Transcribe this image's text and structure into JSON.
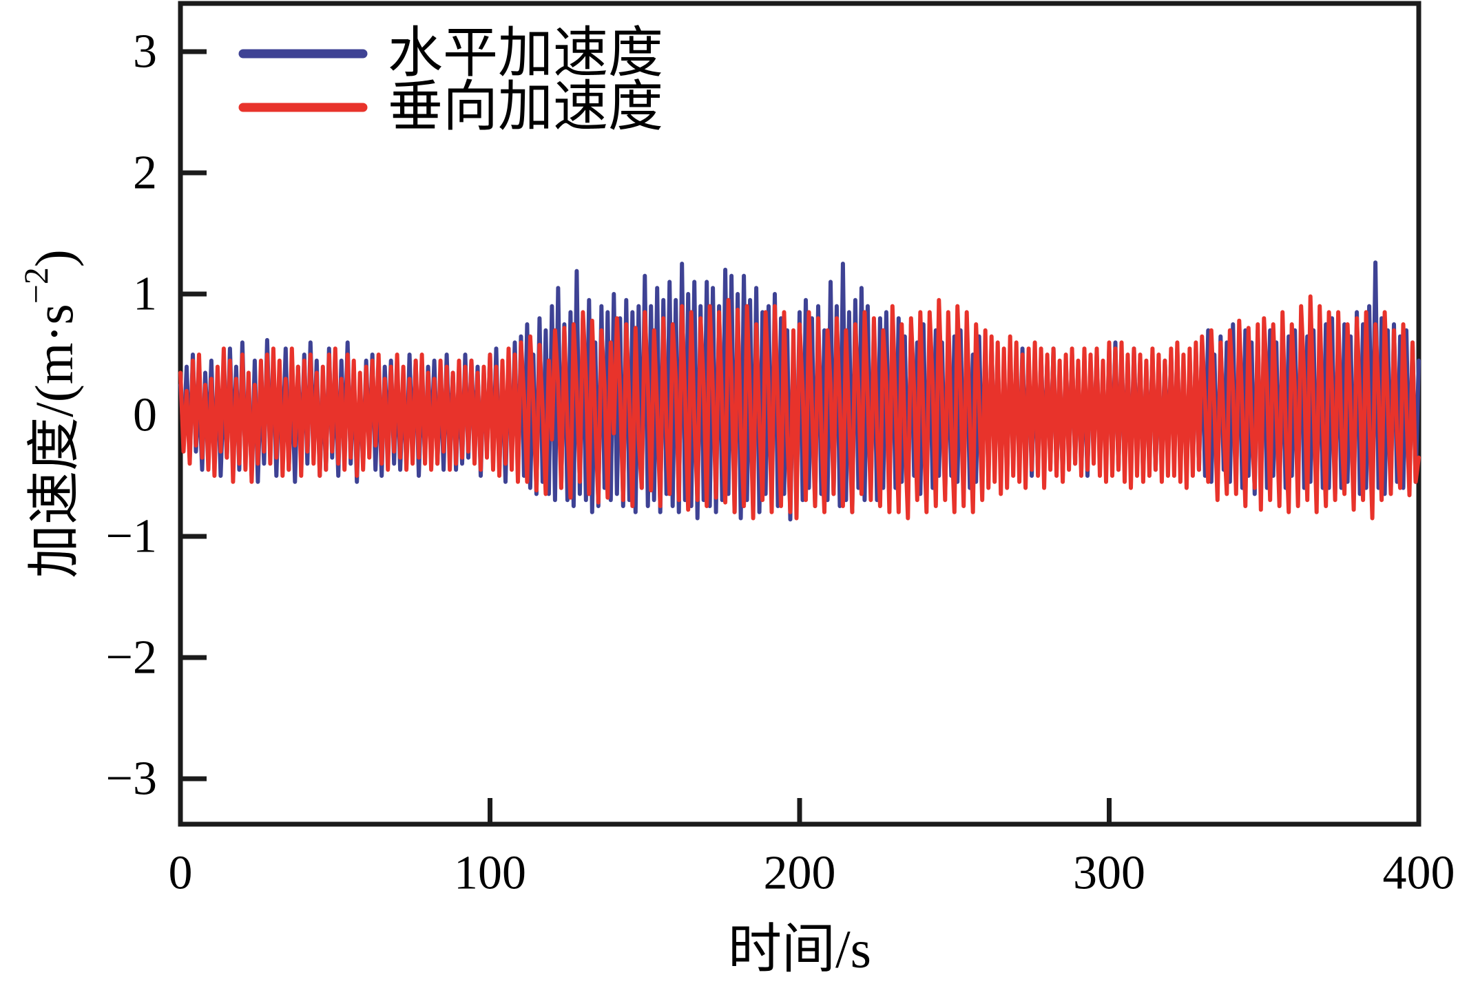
{
  "chart_data": {
    "type": "line",
    "title": "",
    "xlabel": "时间/s",
    "ylabel_prefix": "加速度/(m·s",
    "ylabel_sup": "−2",
    "ylabel_suffix": ")",
    "xlim": [
      0,
      400
    ],
    "ylim": [
      -3.4,
      3.4
    ],
    "grid": false,
    "legend_position": "top-left",
    "x_ticks": [
      0,
      100,
      200,
      300,
      400
    ],
    "x_tick_labels": [
      "0",
      "100",
      "200",
      "300",
      "400"
    ],
    "y_ticks": [
      3,
      2,
      1,
      0,
      -1,
      -2,
      -3
    ],
    "y_tick_labels": [
      "3",
      "2",
      "1",
      "0",
      "−1",
      "−2",
      "−3"
    ],
    "axis_color": "#1b1b1b",
    "series": [
      {
        "name": "水平加速度",
        "color": "#3e4294",
        "x_start": 0,
        "x_step": 1,
        "values": [
          0.25,
          -0.2,
          0.4,
          -0.35,
          0.5,
          -0.3,
          0.2,
          -0.45,
          0.35,
          -0.25,
          0.45,
          -0.4,
          0.3,
          -0.5,
          0.25,
          -0.35,
          0.55,
          -0.3,
          0.4,
          -0.45,
          0.6,
          -0.35,
          0.25,
          -0.5,
          0.45,
          -0.55,
          0.3,
          -0.4,
          0.62,
          -0.3,
          0.4,
          -0.5,
          0.35,
          -0.25,
          0.55,
          -0.45,
          0.3,
          -0.55,
          0.4,
          -0.35,
          0.5,
          -0.4,
          0.6,
          -0.3,
          0.45,
          -0.5,
          0.25,
          -0.45,
          0.55,
          -0.35,
          0.3,
          -0.5,
          0.45,
          -0.25,
          0.6,
          -0.4,
          0.35,
          -0.55,
          0.25,
          -0.4,
          0.45,
          -0.3,
          0.5,
          -0.45,
          0.3,
          -0.5,
          0.4,
          -0.25,
          0.45,
          -0.4,
          0.35,
          -0.45,
          0.25,
          -0.4,
          0.5,
          -0.3,
          0.45,
          -0.5,
          0.3,
          -0.35,
          0.4,
          -0.25,
          0.45,
          -0.4,
          0.3,
          -0.45,
          0.5,
          -0.3,
          0.35,
          -0.45,
          0.3,
          -0.4,
          0.5,
          -0.35,
          0.45,
          -0.25,
          0.4,
          -0.5,
          0.35,
          -0.3,
          0.5,
          -0.4,
          0.55,
          -0.45,
          0.35,
          -0.55,
          0.45,
          -0.35,
          0.6,
          -0.5,
          0.65,
          -0.5,
          0.75,
          -0.6,
          0.5,
          -0.65,
          0.8,
          -0.55,
          0.7,
          -0.65,
          0.9,
          -0.7,
          1.05,
          -0.6,
          0.75,
          -0.7,
          0.85,
          -0.75,
          1.19,
          -0.65,
          0.8,
          -0.7,
          0.95,
          -0.8,
          0.6,
          -0.75,
          0.9,
          -0.6,
          0.85,
          -0.7,
          1.0,
          -0.65,
          0.8,
          -0.75,
          0.95,
          -0.7,
          0.85,
          -0.8,
          0.9,
          -0.6,
          1.15,
          -0.75,
          0.9,
          -0.7,
          1.05,
          -0.8,
          0.95,
          -0.65,
          1.1,
          -0.75,
          0.95,
          -0.8,
          1.25,
          -0.7,
          1.0,
          -0.75,
          1.1,
          -0.85,
          0.9,
          -0.7,
          1.1,
          -0.75,
          1.05,
          -0.8,
          0.9,
          -0.7,
          1.2,
          -0.65,
          1.15,
          -0.8,
          1.0,
          -0.85,
          1.15,
          -0.7,
          0.95,
          -0.75,
          1.05,
          -0.8,
          0.85,
          -0.65,
          0.9,
          -0.7,
          1.0,
          -0.75,
          0.8,
          -0.65,
          0.7,
          -0.86,
          0.5,
          -0.6,
          0.85,
          -0.7,
          0.95,
          -0.6,
          0.8,
          -0.75,
          0.9,
          -0.65,
          0.7,
          -0.7,
          1.1,
          -0.65,
          0.9,
          -0.75,
          1.25,
          -0.7,
          0.85,
          -0.8,
          0.95,
          -0.6,
          1.05,
          -0.7,
          0.9,
          -0.65,
          0.75,
          -0.7,
          0.8,
          -0.6,
          0.85,
          -0.55,
          0.7,
          -0.6,
          0.8,
          -0.55,
          0.65,
          -0.7,
          0.75,
          -0.5,
          0.6,
          -0.65,
          0.75,
          -0.55,
          0.65,
          -0.6,
          0.7,
          -0.5,
          0.6,
          -0.65,
          0.55,
          -0.5,
          0.65,
          -0.55,
          0.7,
          -0.45,
          0.6,
          -0.6,
          0.5,
          -0.55,
          0.65,
          -0.45,
          0.55,
          -0.5,
          0.6,
          -0.4,
          0.5,
          -0.55,
          0.45,
          -0.5,
          0.55,
          -0.4,
          0.5,
          -0.45,
          0.55,
          -0.35,
          0.45,
          -0.5,
          0.4,
          -0.45,
          0.5,
          -0.35,
          0.45,
          -0.4,
          0.55,
          -0.45,
          0.35,
          -0.5,
          0.45,
          -0.35,
          0.5,
          -0.4,
          0.4,
          -0.45,
          0.35,
          -0.5,
          0.45,
          -0.3,
          0.5,
          -0.4,
          0.35,
          -0.45,
          0.55,
          -0.4,
          0.6,
          -0.45,
          0.5,
          -0.35,
          0.45,
          -0.5,
          0.55,
          -0.35,
          0.45,
          -0.5,
          0.4,
          -0.35,
          0.5,
          -0.45,
          0.35,
          -0.4,
          0.45,
          -0.35,
          0.5,
          -0.4,
          0.55,
          -0.45,
          0.4,
          -0.5,
          0.45,
          -0.4,
          0.55,
          -0.45,
          0.6,
          -0.5,
          0.7,
          -0.55,
          0.5,
          -0.6,
          0.65,
          -0.45,
          0.6,
          -0.55,
          0.75,
          -0.55,
          0.65,
          -0.6,
          0.7,
          -0.5,
          0.6,
          -0.65,
          0.7,
          -0.55,
          0.65,
          -0.6,
          0.7,
          -0.5,
          0.6,
          -0.65,
          0.55,
          -0.6,
          0.65,
          -0.5,
          0.7,
          -0.55,
          0.75,
          -0.6,
          0.65,
          -0.55,
          0.7,
          -0.7,
          0.6,
          -0.6,
          0.75,
          -0.6,
          0.8,
          -0.65,
          0.7,
          -0.6,
          0.75,
          -0.55,
          0.65,
          -0.7,
          0.85,
          -0.65,
          0.75,
          -0.6,
          0.9,
          -0.55,
          1.26,
          -0.6,
          0.8,
          -0.65,
          0.7,
          -0.6,
          0.75,
          -0.55,
          0.65,
          -0.6,
          0.7,
          -0.5,
          0.6,
          -0.55,
          0.45
        ]
      },
      {
        "name": "垂向加速度",
        "color": "#e8332b",
        "x_start": 0,
        "x_step": 1,
        "values": [
          0.35,
          -0.3,
          0.2,
          -0.4,
          0.45,
          -0.25,
          0.5,
          -0.35,
          0.25,
          -0.45,
          0.3,
          -0.5,
          0.4,
          -0.3,
          0.55,
          -0.35,
          0.45,
          -0.55,
          0.3,
          -0.4,
          0.5,
          -0.45,
          0.35,
          -0.55,
          0.25,
          -0.4,
          0.45,
          -0.3,
          0.5,
          -0.4,
          0.55,
          -0.35,
          0.45,
          -0.5,
          0.3,
          -0.45,
          0.55,
          -0.25,
          0.4,
          -0.5,
          0.45,
          -0.3,
          0.5,
          -0.4,
          0.35,
          -0.5,
          0.4,
          -0.45,
          0.5,
          -0.3,
          0.55,
          -0.4,
          0.3,
          -0.45,
          0.5,
          -0.35,
          0.45,
          -0.5,
          0.35,
          -0.45,
          0.4,
          -0.35,
          0.45,
          -0.25,
          0.5,
          -0.4,
          0.3,
          -0.45,
          0.4,
          -0.3,
          0.5,
          -0.35,
          0.4,
          -0.45,
          0.3,
          -0.4,
          0.45,
          -0.35,
          0.5,
          -0.4,
          0.35,
          -0.45,
          0.3,
          -0.4,
          0.45,
          -0.3,
          0.4,
          -0.45,
          0.35,
          -0.4,
          0.45,
          -0.35,
          0.4,
          -0.3,
          0.45,
          -0.4,
          0.35,
          -0.45,
          0.4,
          -0.35,
          0.5,
          -0.45,
          0.4,
          -0.5,
          0.45,
          -0.4,
          0.55,
          -0.45,
          0.5,
          -0.55,
          0.6,
          0.15,
          -0.55,
          0.65,
          0.1,
          -0.62,
          0.58,
          0.05,
          -0.65,
          0.45,
          -0.2,
          0.7,
          0.25,
          -0.6,
          0.72,
          -0.1,
          -0.68,
          0.75,
          0.2,
          -0.55,
          0.85,
          0.3,
          -0.65,
          0.78,
          -0.05,
          -0.72,
          0.7,
          0.25,
          -0.68,
          0.6,
          -0.15,
          0.8,
          0.2,
          -0.7,
          0.75,
          0.1,
          -0.75,
          0.72,
          -0.2,
          -0.6,
          0.85,
          0.25,
          -0.62,
          0.7,
          0.05,
          -0.75,
          0.8,
          -0.1,
          -0.65,
          0.75,
          0.3,
          -0.7,
          0.9,
          0.15,
          -0.78,
          0.85,
          -0.05,
          -0.7,
          0.8,
          0.25,
          -0.75,
          0.9,
          0.2,
          -0.68,
          0.85,
          0.05,
          -0.72,
          0.95,
          0.3,
          -0.8,
          0.87,
          -0.1,
          -0.75,
          0.9,
          0.15,
          -0.85,
          0.75,
          -0.05,
          -0.7,
          0.85,
          0.25,
          -0.8,
          0.9,
          0.1,
          -0.75,
          0.85,
          -0.15,
          -0.8,
          0.7,
          -0.85,
          0.75,
          0.2,
          -0.7,
          0.85,
          0.05,
          -0.75,
          0.8,
          -0.1,
          -0.8,
          0.7,
          0.25,
          -0.65,
          0.8,
          0.1,
          -0.75,
          0.7,
          -0.05,
          -0.8,
          0.75,
          0.2,
          -0.65,
          0.85,
          0.15,
          -0.7,
          0.8,
          -0.1,
          -0.75,
          0.7,
          0.25,
          -0.8,
          0.9,
          0.1,
          -0.8,
          0.75,
          -0.15,
          -0.85,
          0.8,
          0.2,
          -0.7,
          0.85,
          -0.05,
          -0.8,
          0.85,
          0.25,
          -0.75,
          0.95,
          0.15,
          -0.7,
          0.85,
          -0.1,
          -0.8,
          0.9,
          0.2,
          -0.75,
          0.85,
          -0.05,
          -0.8,
          0.75,
          0.1,
          -0.7,
          0.7,
          -0.6,
          0.65,
          -0.55,
          0.6,
          -0.65,
          0.55,
          -0.6,
          0.65,
          -0.5,
          0.6,
          -0.55,
          0.5,
          -0.6,
          0.55,
          -0.45,
          0.6,
          -0.5,
          0.55,
          -0.6,
          0.5,
          -0.45,
          0.55,
          -0.5,
          0.45,
          -0.55,
          0.5,
          -0.45,
          0.55,
          -0.4,
          0.45,
          -0.5,
          0.55,
          -0.45,
          0.5,
          -0.4,
          0.55,
          -0.5,
          0.45,
          -0.55,
          0.6,
          -0.5,
          0.55,
          -0.45,
          0.6,
          -0.55,
          0.5,
          -0.6,
          0.55,
          -0.5,
          0.5,
          -0.55,
          0.45,
          -0.5,
          0.55,
          -0.45,
          0.5,
          -0.55,
          0.45,
          -0.5,
          0.55,
          -0.5,
          0.6,
          -0.55,
          0.5,
          -0.6,
          0.55,
          -0.5,
          0.6,
          -0.45,
          0.65,
          0.1,
          -0.55,
          0.7,
          0.05,
          -0.7,
          0.6,
          -0.1,
          -0.65,
          0.7,
          0.2,
          -0.65,
          0.78,
          0.05,
          -0.75,
          0.72,
          -0.1,
          -0.6,
          0.75,
          -0.78,
          0.8,
          0.25,
          -0.7,
          0.75,
          0.05,
          -0.75,
          0.85,
          -0.1,
          -0.8,
          0.75,
          0.2,
          -0.75,
          0.9,
          0.3,
          -0.7,
          0.98,
          0.1,
          -0.8,
          0.9,
          -0.05,
          -0.75,
          0.85,
          0.2,
          -0.7,
          0.85,
          -0.1,
          -0.65,
          0.75,
          0.05,
          -0.78,
          0.8,
          0.15,
          -0.7,
          0.85,
          -0.05,
          -0.85,
          0.75,
          0.2,
          -0.7,
          0.85,
          0.1,
          -0.65,
          0.7,
          -0.15,
          -0.6,
          0.75,
          0.05,
          -0.66,
          0.6,
          -0.55,
          -0.35
        ]
      }
    ]
  }
}
